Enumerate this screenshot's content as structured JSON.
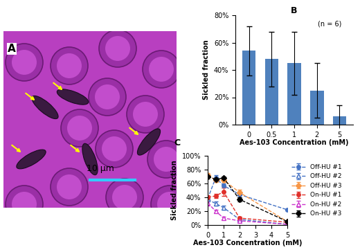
{
  "image_panel": {
    "label": "A",
    "scale_bar_label": "10 μm"
  },
  "chart_data": [
    {
      "type": "bar",
      "title": "B",
      "annotations": [
        "(n = 6)"
      ],
      "x_label": "Aes-103 Concentration (mM)",
      "y_label": "Sickled fraction",
      "categories": [
        "0",
        "0.5",
        "1",
        "2",
        "5"
      ],
      "values": [
        54,
        48,
        45,
        25,
        6
      ],
      "errors": [
        18,
        20,
        23,
        20,
        8
      ],
      "color": "#4f81bd",
      "ylim": [
        0,
        80
      ],
      "yticks": [
        {
          "value": 0,
          "label": "0%"
        },
        {
          "value": 20,
          "label": "20%"
        },
        {
          "value": 40,
          "label": "40%"
        },
        {
          "value": 60,
          "label": "60%"
        },
        {
          "value": 80,
          "label": "80%"
        }
      ]
    },
    {
      "type": "line",
      "title": "C",
      "x_label": "Aes-103 Concentration (mM)",
      "y_label": "Sickled fraction",
      "x": [
        0,
        0.5,
        1,
        2,
        5
      ],
      "series": [
        {
          "name": "Off-HU #1",
          "color": "#4472c4",
          "marker": "circle",
          "line_style": "dashed",
          "values": [
            38,
            68,
            57,
            44,
            22
          ],
          "errors": [
            2,
            4,
            3,
            4,
            1
          ]
        },
        {
          "name": "Off-HU #2",
          "color": "#4472c4",
          "marker": "triangle_open",
          "line_style": "dashed",
          "values": [
            37,
            31,
            25,
            8,
            1
          ],
          "errors": [
            3,
            3,
            3,
            2,
            1
          ]
        },
        {
          "name": "Off-HU #3",
          "color": "#f79646",
          "marker": "diamond",
          "line_style": "dashed",
          "values": [
            72,
            65,
            65,
            47,
            5
          ],
          "errors": [
            3,
            3,
            3,
            4,
            1
          ]
        },
        {
          "name": "On-HU #1",
          "color": "#e0302a",
          "marker": "circle",
          "line_style": "dashed",
          "values": [
            40,
            42,
            48,
            10,
            4
          ],
          "errors": [
            3,
            3,
            6,
            2,
            1
          ]
        },
        {
          "name": "On-HU #2",
          "color": "#cc33cc",
          "marker": "triangle_open",
          "line_style": "dashed",
          "values": [
            32,
            20,
            10,
            6,
            1
          ],
          "errors": [
            4,
            2,
            2,
            1,
            1
          ]
        },
        {
          "name": "On-HU #3",
          "color": "#000000",
          "marker": "diamond",
          "line_style": "dashed",
          "values": [
            70,
            66,
            68,
            37,
            5
          ],
          "errors": [
            3,
            3,
            2,
            3,
            1
          ]
        }
      ],
      "xlim": [
        0,
        5
      ],
      "xticks": [
        0,
        1,
        2,
        3,
        4,
        5
      ],
      "ylim": [
        0,
        100
      ],
      "yticks": [
        {
          "value": 0,
          "label": "0%"
        },
        {
          "value": 20,
          "label": "20%"
        },
        {
          "value": 40,
          "label": "40%"
        },
        {
          "value": 60,
          "label": "60%"
        },
        {
          "value": 80,
          "label": "80%"
        },
        {
          "value": 100,
          "label": "100%"
        }
      ],
      "legend": "center left"
    }
  ]
}
